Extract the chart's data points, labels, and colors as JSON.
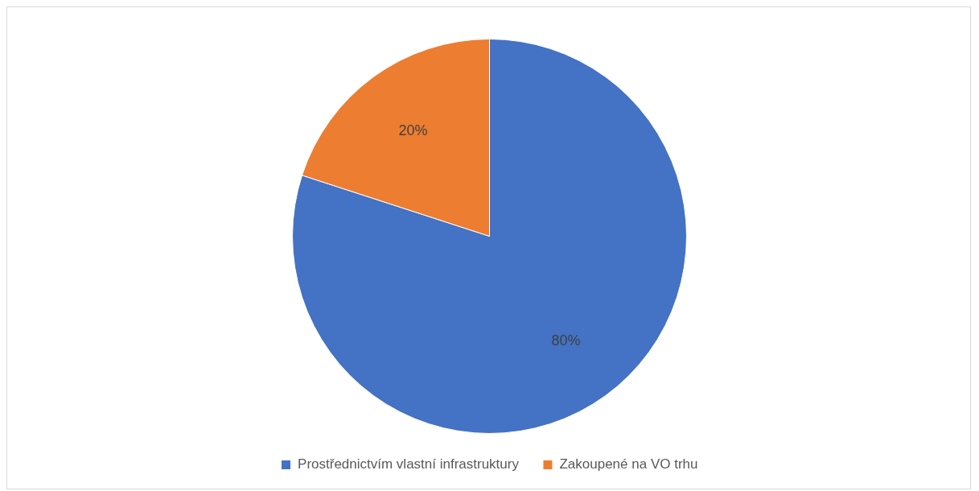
{
  "chart_data": {
    "type": "pie",
    "categories": [
      "Prostřednictvím vlastní infrastruktury",
      "Zakoupené na VO trhu"
    ],
    "values": [
      80,
      20
    ],
    "colors": [
      "#4472c4",
      "#ed7d31"
    ],
    "value_labels": [
      "80%",
      "20%"
    ],
    "legend": "bottom"
  }
}
